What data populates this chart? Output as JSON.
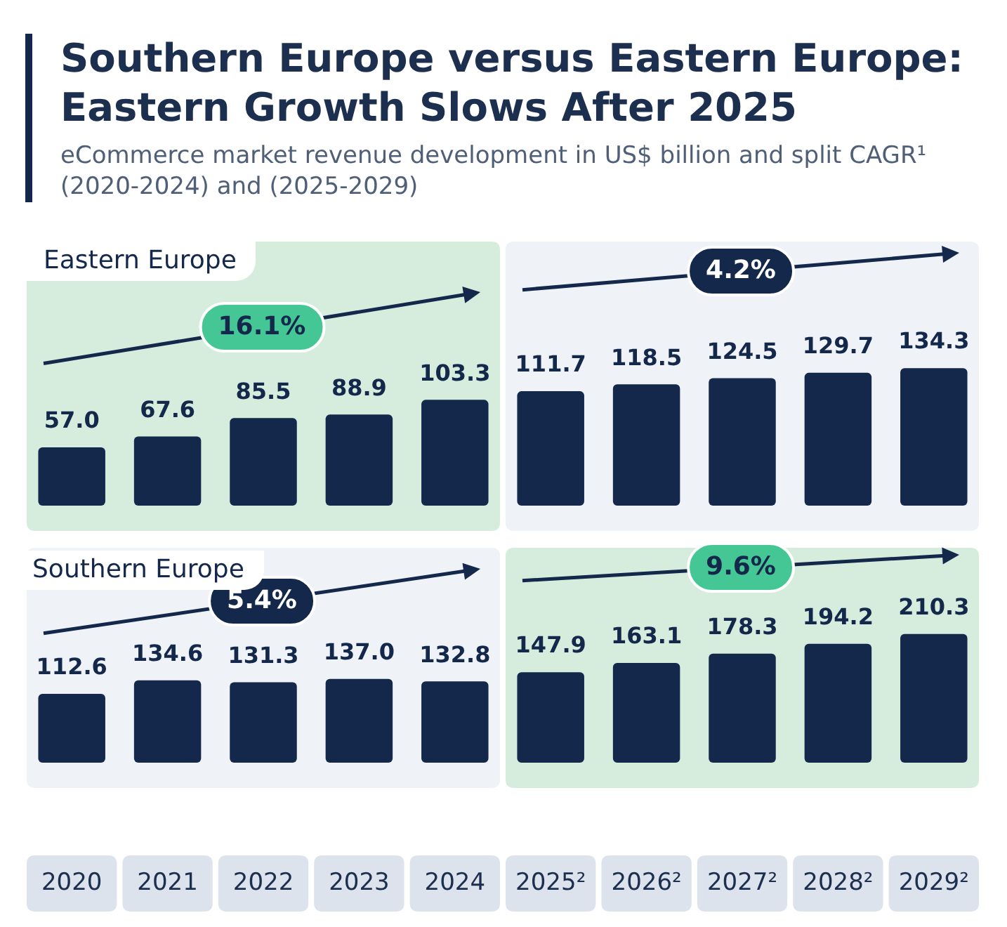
{
  "chart_data": [
    {
      "type": "bar",
      "title": "Southern Europe versus Eastern Europe: Eastern Growth Slows After 2025",
      "subtitle": "eCommerce market revenue development in US$ billion and split CAGR¹ (2020-2024) and (2025-2029)",
      "categories": [
        "2020",
        "2021",
        "2022",
        "2023",
        "2024",
        "2025²",
        "2026²",
        "2027²",
        "2028²",
        "2029²"
      ],
      "series": [
        {
          "name": "Eastern Europe",
          "color": "#13284a",
          "values": [
            57.0,
            67.6,
            85.5,
            88.9,
            103.3,
            111.7,
            118.5,
            124.5,
            129.7,
            134.3
          ],
          "value_labels": [
            "57.0",
            "67.6",
            "85.5",
            "88.9",
            "103.3",
            "111.7",
            "118.5",
            "124.5",
            "129.7",
            "134.3"
          ]
        }
      ],
      "bands": [
        {
          "axis": "x",
          "from": "2020",
          "to": "2024",
          "label": "16.1%",
          "color": "#d6ecdc"
        },
        {
          "axis": "x",
          "from": "2025²",
          "to": "2029²",
          "label": "4.2%",
          "color": "#eff2f7"
        }
      ],
      "legend": "top left",
      "tick_labels": false
    },
    {
      "type": "bar",
      "categories": [
        "2020",
        "2021",
        "2022",
        "2023",
        "2024",
        "2025²",
        "2026²",
        "2027²",
        "2028²",
        "2029²"
      ],
      "series": [
        {
          "name": "Southern Europe",
          "color": "#13284a",
          "values": [
            112.6,
            134.6,
            131.3,
            137.0,
            132.8,
            147.9,
            163.1,
            178.3,
            194.2,
            210.3
          ],
          "value_labels": [
            "112.6",
            "134.6",
            "131.3",
            "137.0",
            "132.8",
            "147.9",
            "163.1",
            "178.3",
            "194.2",
            "210.3"
          ]
        }
      ],
      "bands": [
        {
          "axis": "x",
          "from": "2020",
          "to": "2024",
          "label": "5.4%",
          "color": "#eff2f7"
        },
        {
          "axis": "x",
          "from": "2025²",
          "to": "2029²",
          "label": "9.6%",
          "color": "#d6ecdc"
        }
      ],
      "legend": "top left",
      "tick_labels": "x"
    }
  ]
}
